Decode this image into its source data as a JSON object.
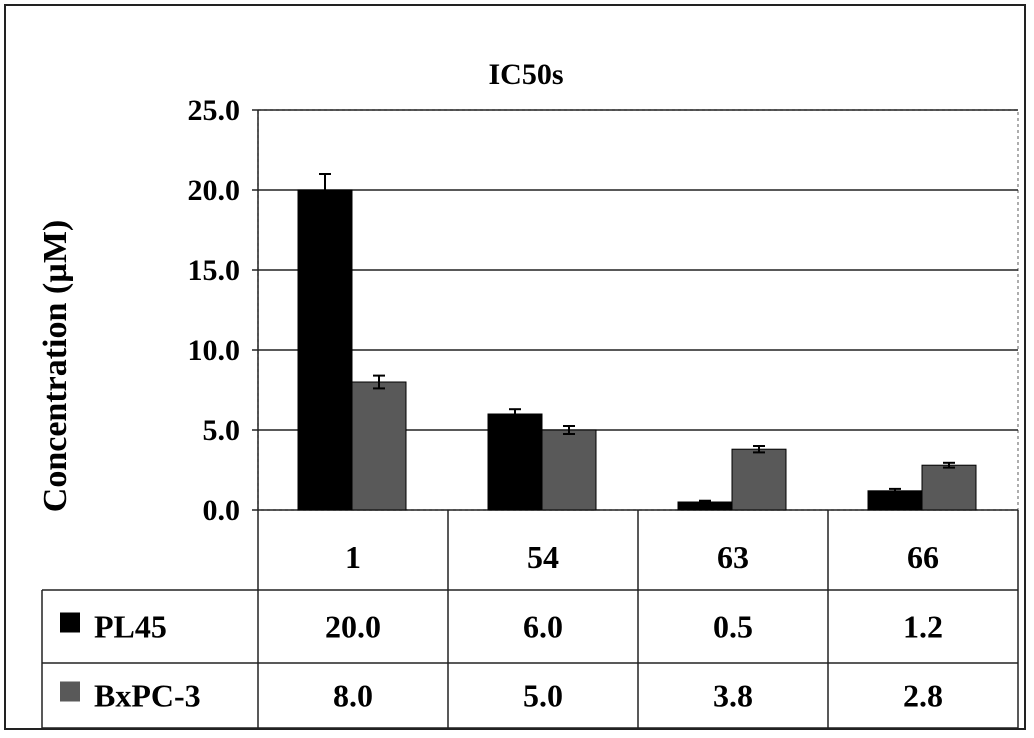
{
  "chart_data": {
    "type": "bar",
    "title": "IC50s",
    "ylabel": "Concentration (µM)",
    "xlabel": "",
    "ylim": [
      0,
      25
    ],
    "yticks": [
      "0.0",
      "5.0",
      "10.0",
      "15.0",
      "20.0",
      "25.0"
    ],
    "grid": true,
    "legend": "data-table",
    "categories": [
      "1",
      "54",
      "63",
      "66"
    ],
    "series": [
      {
        "name": "PL45",
        "color": "#000000",
        "values": [
          20.0,
          6.0,
          0.5,
          1.2
        ],
        "value_labels": [
          "20.0",
          "6.0",
          "0.5",
          "1.2"
        ],
        "errors": [
          1.0,
          0.3,
          0.08,
          0.12
        ]
      },
      {
        "name": "BxPC-3",
        "color": "#595959",
        "values": [
          8.0,
          5.0,
          3.8,
          2.8
        ],
        "value_labels": [
          "8.0",
          "5.0",
          "3.8",
          "2.8"
        ],
        "errors": [
          0.4,
          0.25,
          0.2,
          0.15
        ]
      }
    ]
  }
}
